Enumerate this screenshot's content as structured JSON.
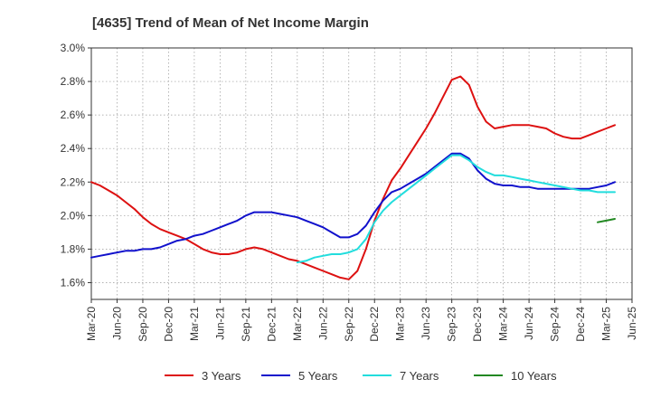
{
  "chart_data": {
    "type": "line",
    "title": "[4635]  Trend of Mean of Net Income Margin",
    "xlabel": "",
    "ylabel": "",
    "x_ticks": [
      "Mar-20",
      "Jun-20",
      "Sep-20",
      "Dec-20",
      "Mar-21",
      "Jun-21",
      "Sep-21",
      "Dec-21",
      "Mar-22",
      "Jun-22",
      "Sep-22",
      "Dec-22",
      "Mar-23",
      "Jun-23",
      "Sep-23",
      "Dec-23",
      "Mar-24",
      "Jun-24",
      "Sep-24",
      "Dec-24",
      "Mar-25",
      "Jun-25"
    ],
    "y_ticks": [
      1.6,
      1.8,
      2.0,
      2.2,
      2.4,
      2.6,
      2.8,
      3.0
    ],
    "y_tick_labels": [
      "1.6%",
      "1.8%",
      "2.0%",
      "2.2%",
      "2.4%",
      "2.6%",
      "2.8%",
      "3.0%"
    ],
    "ylim": [
      1.5,
      3.0
    ],
    "x_range": [
      "Mar-20",
      "Jun-25"
    ],
    "grid": true,
    "legend_position": "bottom",
    "series": [
      {
        "name": "3 Years",
        "color": "#dd1111",
        "points": [
          [
            "Mar-20",
            2.2
          ],
          [
            "Apr-20",
            2.18
          ],
          [
            "May-20",
            2.15
          ],
          [
            "Jun-20",
            2.12
          ],
          [
            "Jul-20",
            2.08
          ],
          [
            "Aug-20",
            2.04
          ],
          [
            "Sep-20",
            1.99
          ],
          [
            "Oct-20",
            1.95
          ],
          [
            "Nov-20",
            1.92
          ],
          [
            "Dec-20",
            1.9
          ],
          [
            "Jan-21",
            1.88
          ],
          [
            "Feb-21",
            1.86
          ],
          [
            "Mar-21",
            1.83
          ],
          [
            "Apr-21",
            1.8
          ],
          [
            "May-21",
            1.78
          ],
          [
            "Jun-21",
            1.77
          ],
          [
            "Jul-21",
            1.77
          ],
          [
            "Aug-21",
            1.78
          ],
          [
            "Sep-21",
            1.8
          ],
          [
            "Oct-21",
            1.81
          ],
          [
            "Nov-21",
            1.8
          ],
          [
            "Dec-21",
            1.78
          ],
          [
            "Jan-22",
            1.76
          ],
          [
            "Feb-22",
            1.74
          ],
          [
            "Mar-22",
            1.73
          ],
          [
            "Apr-22",
            1.71
          ],
          [
            "May-22",
            1.69
          ],
          [
            "Jun-22",
            1.67
          ],
          [
            "Jul-22",
            1.65
          ],
          [
            "Aug-22",
            1.63
          ],
          [
            "Sep-22",
            1.62
          ],
          [
            "Oct-22",
            1.67
          ],
          [
            "Nov-22",
            1.8
          ],
          [
            "Dec-22",
            1.97
          ],
          [
            "Jan-23",
            2.1
          ],
          [
            "Feb-23",
            2.21
          ],
          [
            "Mar-23",
            2.28
          ],
          [
            "Apr-23",
            2.36
          ],
          [
            "May-23",
            2.44
          ],
          [
            "Jun-23",
            2.52
          ],
          [
            "Jul-23",
            2.61
          ],
          [
            "Aug-23",
            2.71
          ],
          [
            "Sep-23",
            2.81
          ],
          [
            "Oct-23",
            2.83
          ],
          [
            "Nov-23",
            2.78
          ],
          [
            "Dec-23",
            2.65
          ],
          [
            "Jan-24",
            2.56
          ],
          [
            "Feb-24",
            2.52
          ],
          [
            "Mar-24",
            2.53
          ],
          [
            "Apr-24",
            2.54
          ],
          [
            "May-24",
            2.54
          ],
          [
            "Jun-24",
            2.54
          ],
          [
            "Jul-24",
            2.53
          ],
          [
            "Aug-24",
            2.52
          ],
          [
            "Sep-24",
            2.49
          ],
          [
            "Oct-24",
            2.47
          ],
          [
            "Nov-24",
            2.46
          ],
          [
            "Dec-24",
            2.46
          ],
          [
            "Jan-25",
            2.48
          ],
          [
            "Feb-25",
            2.5
          ],
          [
            "Mar-25",
            2.52
          ],
          [
            "Apr-25",
            2.54
          ]
        ]
      },
      {
        "name": "5 Years",
        "color": "#1111cc",
        "points": [
          [
            "Mar-20",
            1.75
          ],
          [
            "Apr-20",
            1.76
          ],
          [
            "May-20",
            1.77
          ],
          [
            "Jun-20",
            1.78
          ],
          [
            "Jul-20",
            1.79
          ],
          [
            "Aug-20",
            1.79
          ],
          [
            "Sep-20",
            1.8
          ],
          [
            "Oct-20",
            1.8
          ],
          [
            "Nov-20",
            1.81
          ],
          [
            "Dec-20",
            1.83
          ],
          [
            "Jan-21",
            1.85
          ],
          [
            "Feb-21",
            1.86
          ],
          [
            "Mar-21",
            1.88
          ],
          [
            "Apr-21",
            1.89
          ],
          [
            "May-21",
            1.91
          ],
          [
            "Jun-21",
            1.93
          ],
          [
            "Jul-21",
            1.95
          ],
          [
            "Aug-21",
            1.97
          ],
          [
            "Sep-21",
            2.0
          ],
          [
            "Oct-21",
            2.02
          ],
          [
            "Nov-21",
            2.02
          ],
          [
            "Dec-21",
            2.02
          ],
          [
            "Jan-22",
            2.01
          ],
          [
            "Feb-22",
            2.0
          ],
          [
            "Mar-22",
            1.99
          ],
          [
            "Apr-22",
            1.97
          ],
          [
            "May-22",
            1.95
          ],
          [
            "Jun-22",
            1.93
          ],
          [
            "Jul-22",
            1.9
          ],
          [
            "Aug-22",
            1.87
          ],
          [
            "Sep-22",
            1.87
          ],
          [
            "Oct-22",
            1.89
          ],
          [
            "Nov-22",
            1.94
          ],
          [
            "Dec-22",
            2.02
          ],
          [
            "Jan-23",
            2.09
          ],
          [
            "Feb-23",
            2.14
          ],
          [
            "Mar-23",
            2.16
          ],
          [
            "Apr-23",
            2.19
          ],
          [
            "May-23",
            2.22
          ],
          [
            "Jun-23",
            2.25
          ],
          [
            "Jul-23",
            2.29
          ],
          [
            "Aug-23",
            2.33
          ],
          [
            "Sep-23",
            2.37
          ],
          [
            "Oct-23",
            2.37
          ],
          [
            "Nov-23",
            2.34
          ],
          [
            "Dec-23",
            2.27
          ],
          [
            "Jan-24",
            2.22
          ],
          [
            "Feb-24",
            2.19
          ],
          [
            "Mar-24",
            2.18
          ],
          [
            "Apr-24",
            2.18
          ],
          [
            "May-24",
            2.17
          ],
          [
            "Jun-24",
            2.17
          ],
          [
            "Jul-24",
            2.16
          ],
          [
            "Aug-24",
            2.16
          ],
          [
            "Sep-24",
            2.16
          ],
          [
            "Oct-24",
            2.16
          ],
          [
            "Nov-24",
            2.16
          ],
          [
            "Dec-24",
            2.16
          ],
          [
            "Jan-25",
            2.16
          ],
          [
            "Feb-25",
            2.17
          ],
          [
            "Mar-25",
            2.18
          ],
          [
            "Apr-25",
            2.2
          ]
        ]
      },
      {
        "name": "7 Years",
        "color": "#22dddd",
        "points": [
          [
            "Mar-22",
            1.72
          ],
          [
            "Apr-22",
            1.73
          ],
          [
            "May-22",
            1.75
          ],
          [
            "Jun-22",
            1.76
          ],
          [
            "Jul-22",
            1.77
          ],
          [
            "Aug-22",
            1.77
          ],
          [
            "Sep-22",
            1.78
          ],
          [
            "Oct-22",
            1.8
          ],
          [
            "Nov-22",
            1.86
          ],
          [
            "Dec-22",
            1.96
          ],
          [
            "Jan-23",
            2.03
          ],
          [
            "Feb-23",
            2.08
          ],
          [
            "Mar-23",
            2.12
          ],
          [
            "Apr-23",
            2.16
          ],
          [
            "May-23",
            2.2
          ],
          [
            "Jun-23",
            2.24
          ],
          [
            "Jul-23",
            2.28
          ],
          [
            "Aug-23",
            2.32
          ],
          [
            "Sep-23",
            2.36
          ],
          [
            "Oct-23",
            2.36
          ],
          [
            "Nov-23",
            2.33
          ],
          [
            "Dec-23",
            2.29
          ],
          [
            "Jan-24",
            2.26
          ],
          [
            "Feb-24",
            2.24
          ],
          [
            "Mar-24",
            2.24
          ],
          [
            "Apr-24",
            2.23
          ],
          [
            "May-24",
            2.22
          ],
          [
            "Jun-24",
            2.21
          ],
          [
            "Jul-24",
            2.2
          ],
          [
            "Aug-24",
            2.19
          ],
          [
            "Sep-24",
            2.18
          ],
          [
            "Oct-24",
            2.17
          ],
          [
            "Nov-24",
            2.16
          ],
          [
            "Dec-24",
            2.15
          ],
          [
            "Jan-25",
            2.15
          ],
          [
            "Feb-25",
            2.14
          ],
          [
            "Mar-25",
            2.14
          ],
          [
            "Apr-25",
            2.14
          ]
        ]
      },
      {
        "name": "10 Years",
        "color": "#228822",
        "points": [
          [
            "Feb-25",
            1.96
          ],
          [
            "Mar-25",
            1.97
          ],
          [
            "Apr-25",
            1.98
          ]
        ]
      }
    ]
  }
}
